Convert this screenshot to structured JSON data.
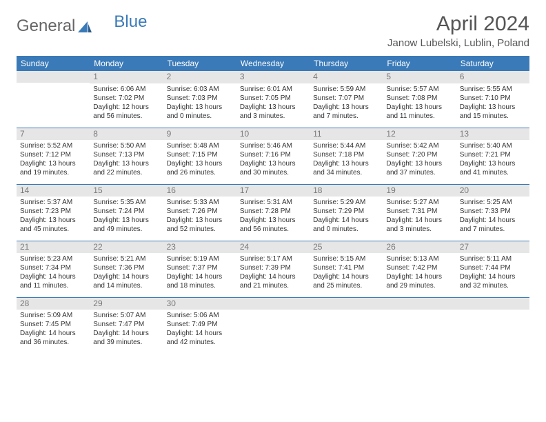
{
  "logo": {
    "part1": "General",
    "part2": "Blue"
  },
  "title": "April 2024",
  "location": "Janow Lubelski, Lublin, Poland",
  "header_bg": "#3a7ab8",
  "dayHeaders": [
    "Sunday",
    "Monday",
    "Tuesday",
    "Wednesday",
    "Thursday",
    "Friday",
    "Saturday"
  ],
  "weeks": [
    [
      {
        "empty": true
      },
      {
        "n": "1",
        "sr": "6:06 AM",
        "ss": "7:02 PM",
        "dl": "12 hours and 56 minutes."
      },
      {
        "n": "2",
        "sr": "6:03 AM",
        "ss": "7:03 PM",
        "dl": "13 hours and 0 minutes."
      },
      {
        "n": "3",
        "sr": "6:01 AM",
        "ss": "7:05 PM",
        "dl": "13 hours and 3 minutes."
      },
      {
        "n": "4",
        "sr": "5:59 AM",
        "ss": "7:07 PM",
        "dl": "13 hours and 7 minutes."
      },
      {
        "n": "5",
        "sr": "5:57 AM",
        "ss": "7:08 PM",
        "dl": "13 hours and 11 minutes."
      },
      {
        "n": "6",
        "sr": "5:55 AM",
        "ss": "7:10 PM",
        "dl": "13 hours and 15 minutes."
      }
    ],
    [
      {
        "n": "7",
        "sr": "5:52 AM",
        "ss": "7:12 PM",
        "dl": "13 hours and 19 minutes."
      },
      {
        "n": "8",
        "sr": "5:50 AM",
        "ss": "7:13 PM",
        "dl": "13 hours and 22 minutes."
      },
      {
        "n": "9",
        "sr": "5:48 AM",
        "ss": "7:15 PM",
        "dl": "13 hours and 26 minutes."
      },
      {
        "n": "10",
        "sr": "5:46 AM",
        "ss": "7:16 PM",
        "dl": "13 hours and 30 minutes."
      },
      {
        "n": "11",
        "sr": "5:44 AM",
        "ss": "7:18 PM",
        "dl": "13 hours and 34 minutes."
      },
      {
        "n": "12",
        "sr": "5:42 AM",
        "ss": "7:20 PM",
        "dl": "13 hours and 37 minutes."
      },
      {
        "n": "13",
        "sr": "5:40 AM",
        "ss": "7:21 PM",
        "dl": "13 hours and 41 minutes."
      }
    ],
    [
      {
        "n": "14",
        "sr": "5:37 AM",
        "ss": "7:23 PM",
        "dl": "13 hours and 45 minutes."
      },
      {
        "n": "15",
        "sr": "5:35 AM",
        "ss": "7:24 PM",
        "dl": "13 hours and 49 minutes."
      },
      {
        "n": "16",
        "sr": "5:33 AM",
        "ss": "7:26 PM",
        "dl": "13 hours and 52 minutes."
      },
      {
        "n": "17",
        "sr": "5:31 AM",
        "ss": "7:28 PM",
        "dl": "13 hours and 56 minutes."
      },
      {
        "n": "18",
        "sr": "5:29 AM",
        "ss": "7:29 PM",
        "dl": "14 hours and 0 minutes."
      },
      {
        "n": "19",
        "sr": "5:27 AM",
        "ss": "7:31 PM",
        "dl": "14 hours and 3 minutes."
      },
      {
        "n": "20",
        "sr": "5:25 AM",
        "ss": "7:33 PM",
        "dl": "14 hours and 7 minutes."
      }
    ],
    [
      {
        "n": "21",
        "sr": "5:23 AM",
        "ss": "7:34 PM",
        "dl": "14 hours and 11 minutes."
      },
      {
        "n": "22",
        "sr": "5:21 AM",
        "ss": "7:36 PM",
        "dl": "14 hours and 14 minutes."
      },
      {
        "n": "23",
        "sr": "5:19 AM",
        "ss": "7:37 PM",
        "dl": "14 hours and 18 minutes."
      },
      {
        "n": "24",
        "sr": "5:17 AM",
        "ss": "7:39 PM",
        "dl": "14 hours and 21 minutes."
      },
      {
        "n": "25",
        "sr": "5:15 AM",
        "ss": "7:41 PM",
        "dl": "14 hours and 25 minutes."
      },
      {
        "n": "26",
        "sr": "5:13 AM",
        "ss": "7:42 PM",
        "dl": "14 hours and 29 minutes."
      },
      {
        "n": "27",
        "sr": "5:11 AM",
        "ss": "7:44 PM",
        "dl": "14 hours and 32 minutes."
      }
    ],
    [
      {
        "n": "28",
        "sr": "5:09 AM",
        "ss": "7:45 PM",
        "dl": "14 hours and 36 minutes."
      },
      {
        "n": "29",
        "sr": "5:07 AM",
        "ss": "7:47 PM",
        "dl": "14 hours and 39 minutes."
      },
      {
        "n": "30",
        "sr": "5:06 AM",
        "ss": "7:49 PM",
        "dl": "14 hours and 42 minutes."
      },
      {
        "empty": true
      },
      {
        "empty": true
      },
      {
        "empty": true
      },
      {
        "empty": true
      }
    ]
  ]
}
